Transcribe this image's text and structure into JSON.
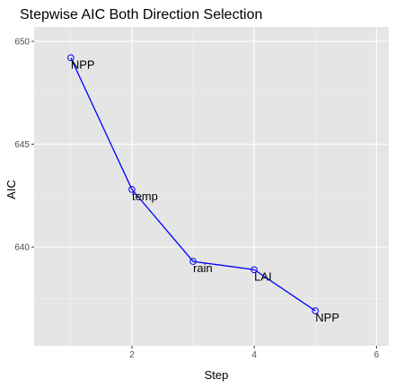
{
  "chart_data": {
    "type": "line",
    "title": "Stepwise AIC Both Direction Selection",
    "xlabel": "Step",
    "ylabel": "AIC",
    "xlim": [
      0.4,
      6.2
    ],
    "ylim": [
      635.2,
      650.7
    ],
    "x_ticks": [
      2,
      4,
      6
    ],
    "y_ticks": [
      640,
      645,
      650
    ],
    "x_tick_labels": [
      "2",
      "4",
      "6"
    ],
    "y_tick_labels": [
      "640",
      "645",
      "650"
    ],
    "grid": true,
    "legend": "none",
    "series": [
      {
        "color": "#0000ff",
        "points": [
          {
            "x": 1,
            "y": 649.2,
            "label": "NPP"
          },
          {
            "x": 2,
            "y": 642.8,
            "label": "temp"
          },
          {
            "x": 3,
            "y": 639.3,
            "label": "rain"
          },
          {
            "x": 4,
            "y": 638.9,
            "label": "LAI"
          },
          {
            "x": 5,
            "y": 636.9,
            "label": "NPP"
          }
        ]
      }
    ]
  }
}
